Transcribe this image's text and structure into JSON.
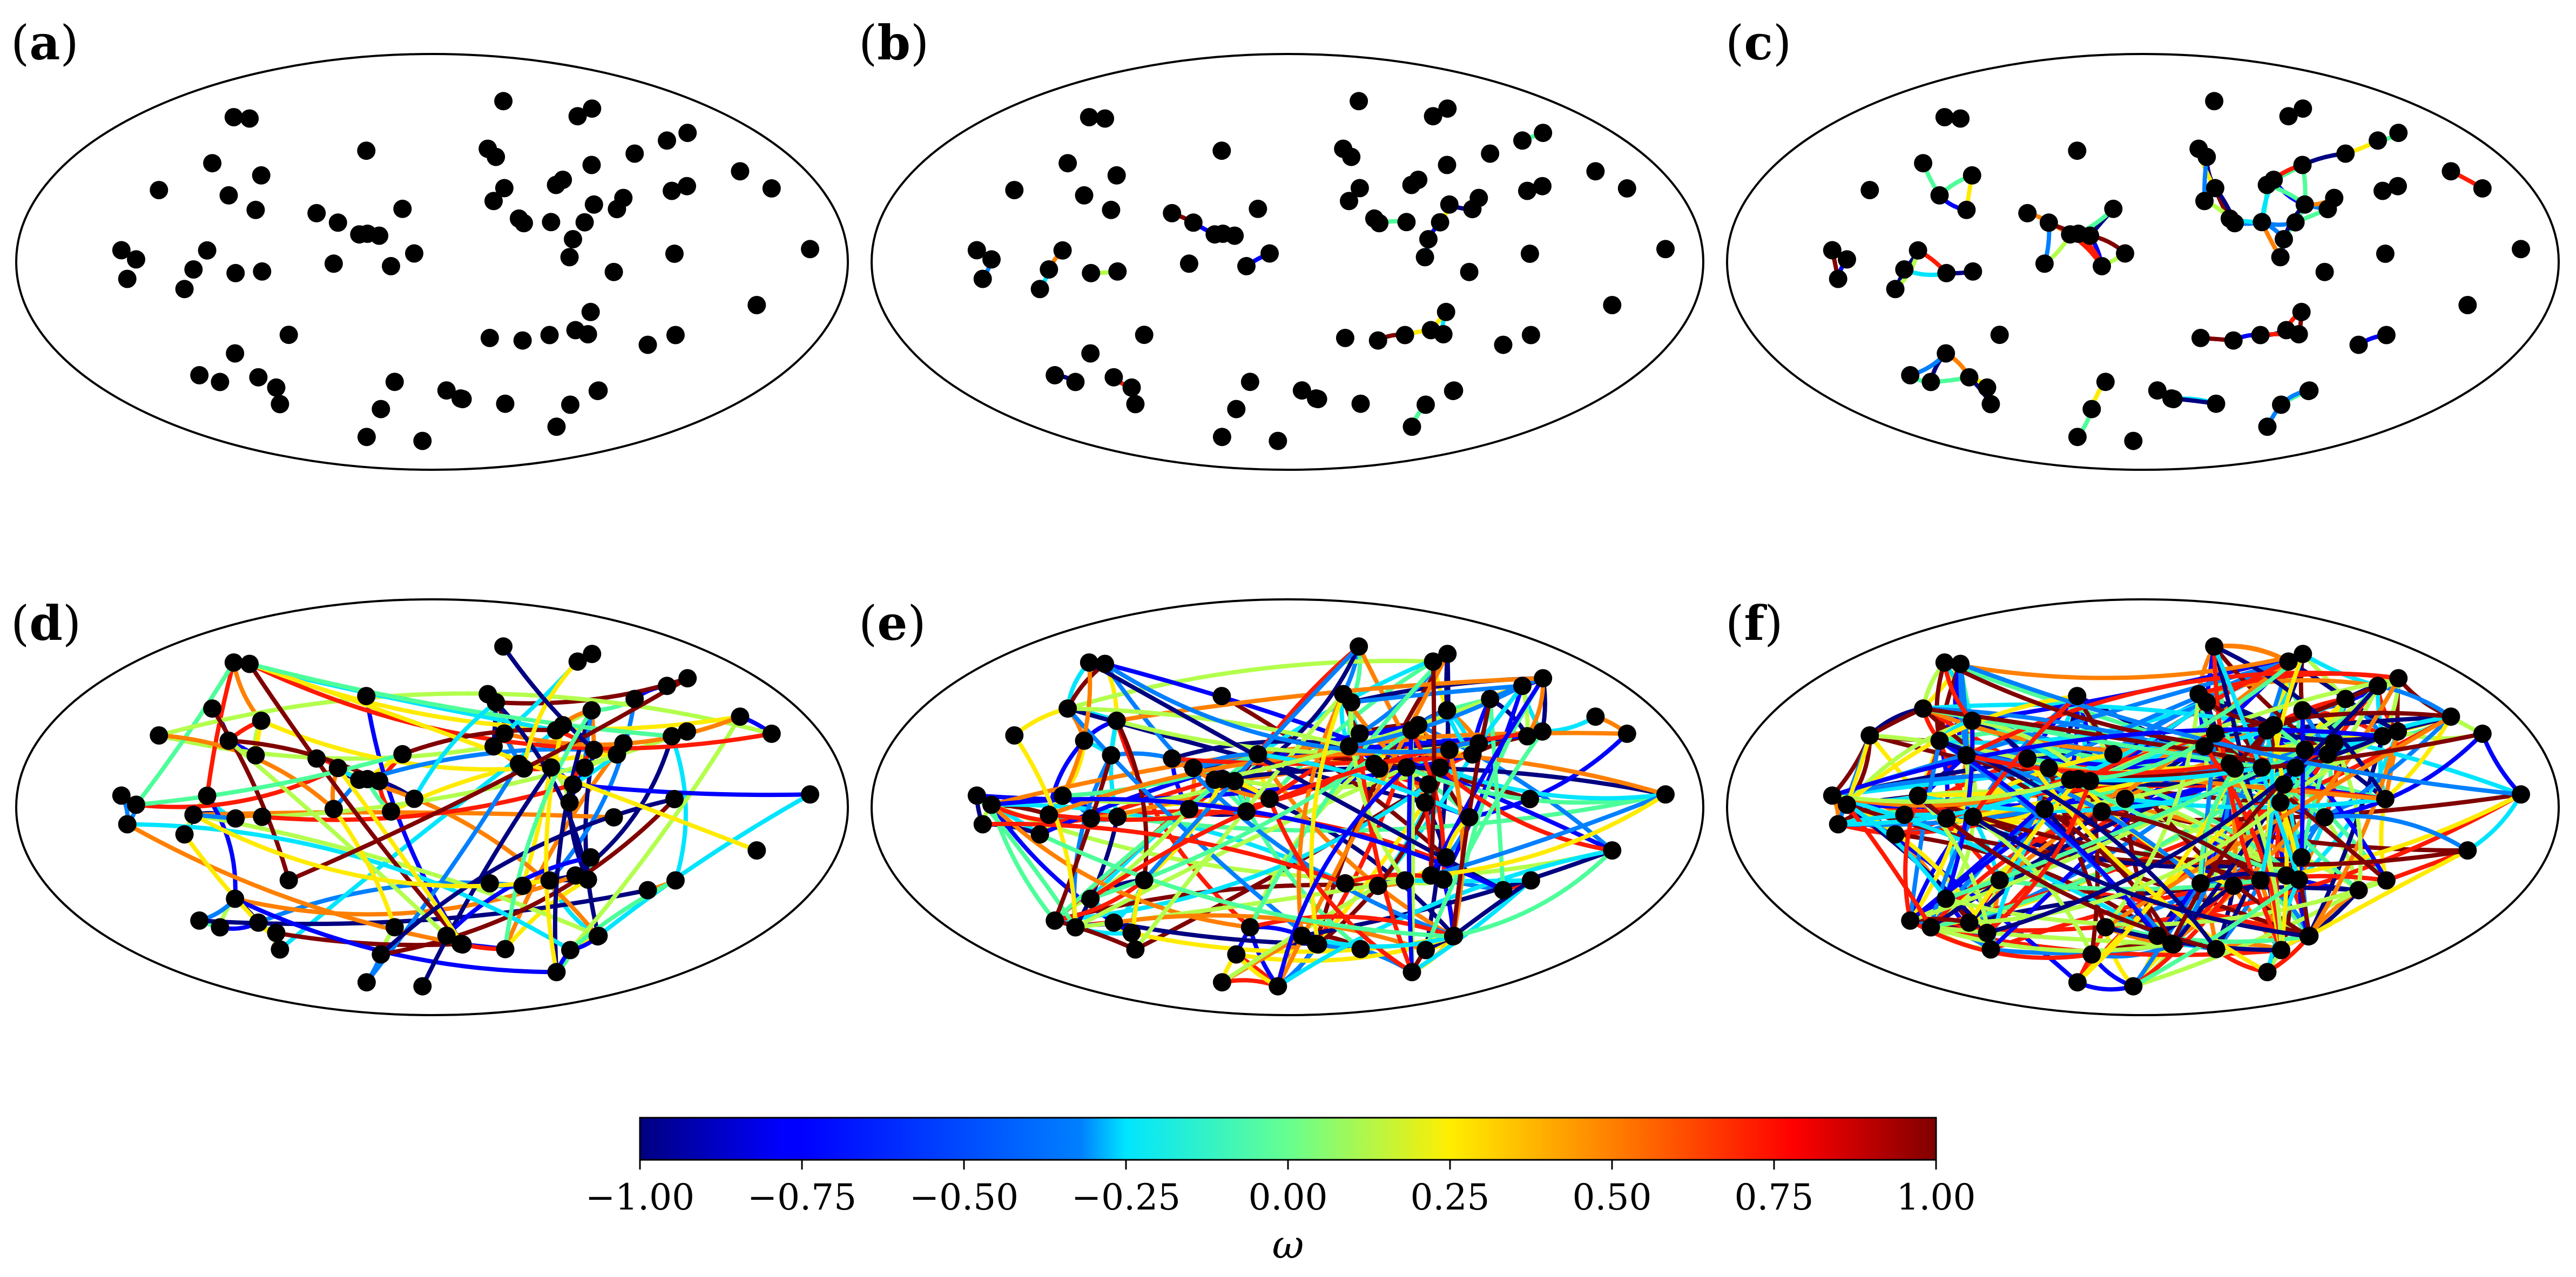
{
  "panels": [
    {
      "open": "(",
      "letter": "a",
      "close": ")"
    },
    {
      "open": "(",
      "letter": "b",
      "close": ")"
    },
    {
      "open": "(",
      "letter": "c",
      "close": ")"
    },
    {
      "open": "(",
      "letter": "d",
      "close": ")"
    },
    {
      "open": "(",
      "letter": "e",
      "close": ")"
    },
    {
      "open": "(",
      "letter": "f",
      "close": ")"
    }
  ],
  "colorbar": {
    "label": "ω",
    "colormap": "jet",
    "range": [
      -1.0,
      1.0
    ],
    "ticks": [
      "−1.00",
      "−0.75",
      "−0.50",
      "−0.25",
      "0.00",
      "0.25",
      "0.50",
      "0.75",
      "1.00"
    ]
  },
  "colors": {
    "node": "#000000",
    "outline": "#000000",
    "jet": [
      "#000080",
      "#0000ff",
      "#0080ff",
      "#00e5ff",
      "#4dff9a",
      "#b3ff4d",
      "#ffeb00",
      "#ff8000",
      "#ff1a00",
      "#800000"
    ]
  }
}
